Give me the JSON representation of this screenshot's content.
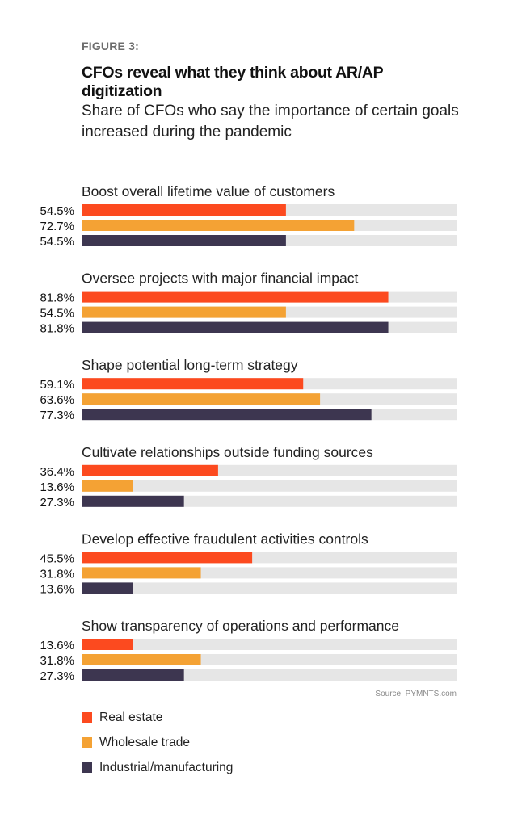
{
  "figure_label": "FIGURE 3:",
  "chart_data": {
    "type": "bar",
    "orientation": "horizontal",
    "title": "CFOs reveal what they think about AR/AP digitization",
    "subtitle": "Share of CFOs who say the importance of certain goals increased during the pandemic",
    "xlim": [
      0,
      100
    ],
    "unit": "%",
    "categories": [
      "Boost overall lifetime value of customers",
      "Oversee projects with major financial impact",
      "Shape potential long-term strategy",
      "Cultivate relationships outside funding sources",
      "Develop effective fraudulent activities controls",
      "Show transparency of operations and performance"
    ],
    "series": [
      {
        "name": "Real estate",
        "color": "#fc4a1f",
        "values": [
          54.5,
          81.8,
          59.1,
          36.4,
          45.5,
          13.6
        ]
      },
      {
        "name": "Wholesale trade",
        "color": "#f4a234",
        "values": [
          72.7,
          54.5,
          63.6,
          13.6,
          31.8,
          31.8
        ]
      },
      {
        "name": "Industrial/manufacturing",
        "color": "#3d3650",
        "values": [
          54.5,
          81.8,
          77.3,
          27.3,
          13.6,
          27.3
        ]
      }
    ],
    "track_color": "#e6e6e6",
    "legend_position": "bottom-left",
    "grid": false
  },
  "source": "Source: PYMNTS.com"
}
